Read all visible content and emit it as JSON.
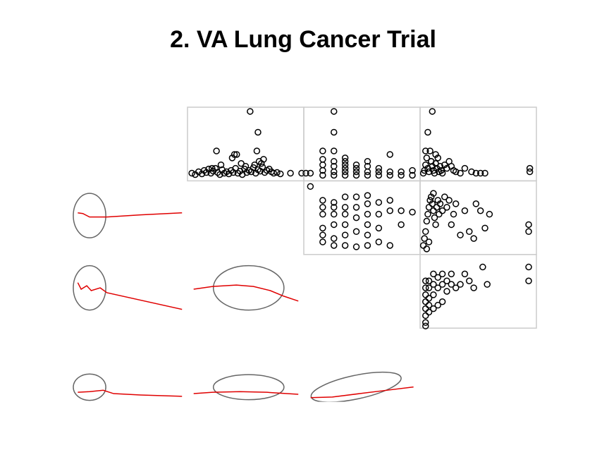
{
  "chart_data": {
    "type": "scatter-matrix",
    "title": "2. VA Lung Cancer Trial",
    "xlim": [
      0,
      100
    ],
    "ylim": [
      0,
      100
    ],
    "point_color": "#000000",
    "frame_color": "#cccccc",
    "ellipse_color": "#666666",
    "smooth_color": "#e00000",
    "panels": [
      {
        "row": 0,
        "col": 1,
        "kind": "scatter",
        "x": [
          2,
          5,
          8,
          11,
          13,
          15,
          17,
          19,
          21,
          23,
          25,
          27,
          29,
          31,
          33,
          35,
          37,
          39,
          41,
          43,
          45,
          47,
          49,
          51,
          53,
          55,
          57,
          59,
          61,
          63,
          65,
          67,
          69,
          71,
          73,
          75,
          78,
          81,
          54,
          61,
          24,
          38,
          40,
          42,
          60,
          62,
          66,
          20,
          28,
          46,
          50,
          58,
          64,
          90,
          100
        ],
        "y": [
          8,
          6,
          10,
          7,
          12,
          9,
          14,
          8,
          11,
          15,
          9,
          6,
          13,
          8,
          10,
          7,
          12,
          9,
          15,
          8,
          11,
          6,
          14,
          9,
          12,
          10,
          16,
          8,
          13,
          11,
          17,
          9,
          12,
          14,
          10,
          8,
          9,
          7,
          97,
          67,
          40,
          30,
          35,
          35,
          40,
          25,
          28,
          15,
          20,
          22,
          18,
          20,
          22,
          8,
          8
        ]
      },
      {
        "row": 0,
        "col": 2,
        "kind": "scatter",
        "x": [
          0,
          4,
          15,
          15,
          15,
          15,
          15,
          25,
          25,
          25,
          25,
          25,
          25,
          35,
          35,
          35,
          35,
          35,
          45,
          45,
          45,
          45,
          55,
          55,
          55,
          55,
          65,
          65,
          65,
          75,
          75,
          75,
          85,
          85,
          95,
          95,
          25,
          35
        ],
        "y": [
          8,
          8,
          5,
          12,
          20,
          28,
          40,
          5,
          10,
          18,
          25,
          40,
          67,
          5,
          10,
          15,
          20,
          25,
          5,
          10,
          15,
          20,
          5,
          10,
          18,
          25,
          5,
          10,
          15,
          5,
          10,
          35,
          5,
          10,
          5,
          12,
          97,
          30
        ]
      },
      {
        "row": 0,
        "col": 3,
        "kind": "scatter",
        "x": [
          1,
          2,
          3,
          4,
          5,
          6,
          7,
          8,
          9,
          10,
          11,
          12,
          13,
          14,
          15,
          16,
          17,
          18,
          20,
          22,
          24,
          26,
          28,
          30,
          34,
          38,
          44,
          48,
          52,
          56,
          9,
          5,
          3,
          96,
          96,
          12,
          8
        ],
        "y": [
          8,
          12,
          20,
          30,
          15,
          10,
          40,
          25,
          18,
          12,
          8,
          22,
          15,
          30,
          10,
          18,
          12,
          8,
          20,
          15,
          25,
          18,
          12,
          10,
          8,
          15,
          10,
          8,
          8,
          8,
          97,
          67,
          40,
          10,
          15,
          35,
          25
        ]
      },
      {
        "row": 1,
        "col": 2,
        "kind": "scatter",
        "x": [
          15,
          15,
          15,
          15,
          15,
          15,
          25,
          25,
          25,
          25,
          25,
          25,
          35,
          35,
          35,
          35,
          35,
          35,
          45,
          45,
          45,
          45,
          45,
          55,
          55,
          55,
          55,
          55,
          55,
          65,
          65,
          65,
          65,
          75,
          75,
          75,
          85,
          85,
          95,
          4
        ],
        "y": [
          15,
          25,
          35,
          55,
          65,
          75,
          10,
          20,
          40,
          55,
          65,
          72,
          10,
          25,
          40,
          55,
          65,
          80,
          8,
          30,
          50,
          65,
          80,
          10,
          25,
          40,
          55,
          70,
          82,
          15,
          35,
          55,
          72,
          10,
          60,
          75,
          40,
          60,
          58,
          95
        ]
      },
      {
        "row": 1,
        "col": 3,
        "kind": "scatter",
        "x": [
          1,
          2,
          3,
          4,
          5,
          6,
          7,
          8,
          9,
          10,
          11,
          12,
          13,
          14,
          15,
          16,
          18,
          20,
          22,
          24,
          26,
          28,
          30,
          34,
          38,
          42,
          46,
          48,
          52,
          56,
          60,
          95,
          95,
          4,
          6,
          10
        ],
        "y": [
          10,
          20,
          30,
          45,
          55,
          65,
          75,
          80,
          70,
          60,
          50,
          40,
          65,
          75,
          55,
          70,
          60,
          80,
          65,
          75,
          40,
          55,
          70,
          25,
          60,
          30,
          20,
          70,
          60,
          35,
          55,
          40,
          30,
          5,
          15,
          85
        ]
      },
      {
        "row": 2,
        "col": 3,
        "kind": "scatter",
        "x": [
          3,
          3,
          3,
          3,
          3,
          3,
          3,
          6,
          6,
          6,
          6,
          6,
          10,
          10,
          10,
          10,
          14,
          14,
          14,
          18,
          18,
          18,
          22,
          22,
          26,
          26,
          30,
          34,
          38,
          42,
          46,
          54,
          58,
          95,
          95,
          3
        ],
        "y": [
          5,
          15,
          25,
          35,
          45,
          55,
          65,
          20,
          30,
          40,
          55,
          65,
          25,
          45,
          60,
          75,
          30,
          55,
          70,
          35,
          60,
          75,
          50,
          65,
          60,
          75,
          55,
          60,
          75,
          65,
          55,
          85,
          60,
          85,
          65,
          0
        ]
      },
      {
        "row": 1,
        "col": 0,
        "kind": "ellipse",
        "ellipse": {
          "cx": 14.5,
          "cy": 53,
          "rx": 14.5,
          "ry": 32,
          "angle": 0
        },
        "loess": {
          "x": [
            4,
            8.5,
            14.5,
            30,
            60,
            97
          ],
          "y": [
            57,
            56,
            51,
            51,
            54,
            57
          ]
        }
      },
      {
        "row": 2,
        "col": 0,
        "kind": "ellipse",
        "ellipse": {
          "cx": 14.5,
          "cy": 55,
          "rx": 14.5,
          "ry": 32,
          "angle": 0
        },
        "loess": {
          "x": [
            4,
            7,
            12,
            16,
            24,
            30,
            97
          ],
          "y": [
            62.5,
            53,
            58,
            51,
            55,
            48,
            24
          ]
        }
      },
      {
        "row": 2,
        "col": 1,
        "kind": "ellipse",
        "ellipse": {
          "cx": 52.7,
          "cy": 55,
          "rx": 31.5,
          "ry": 32,
          "angle": 0
        },
        "loess": {
          "x": [
            3.6,
            20.6,
            41.8,
            57,
            72,
            84,
            97
          ],
          "y": [
            53,
            57,
            59,
            57,
            51,
            43,
            36
          ]
        }
      },
      {
        "row": 3,
        "col": 0,
        "kind": "ellipse",
        "ellipse": {
          "cx": 14.5,
          "cy": 18,
          "rx": 14.5,
          "ry": 19,
          "angle": 0
        },
        "loess": {
          "x": [
            4,
            14.5,
            26.7,
            36,
            60,
            97
          ],
          "y": [
            10.6,
            11.5,
            13.5,
            8.7,
            6.7,
            4.8
          ]
        }
      },
      {
        "row": 3,
        "col": 1,
        "kind": "ellipse",
        "ellipse": {
          "cx": 52.7,
          "cy": 18,
          "rx": 31.5,
          "ry": 18,
          "angle": 0
        },
        "loess": {
          "x": [
            3.6,
            20.6,
            44.8,
            69,
            97
          ],
          "y": [
            8.7,
            10.6,
            11.5,
            10.6,
            7.7
          ]
        }
      },
      {
        "row": 3,
        "col": 2,
        "kind": "ellipse",
        "ellipse": {
          "cx": 44.8,
          "cy": 18,
          "rx": 41,
          "ry": 17,
          "angle": -12
        },
        "loess": {
          "x": [
            4.2,
            23.6,
            47.9,
            72,
            96
          ],
          "y": [
            2.9,
            3.8,
            8.7,
            13.5,
            18.3
          ]
        }
      }
    ]
  }
}
